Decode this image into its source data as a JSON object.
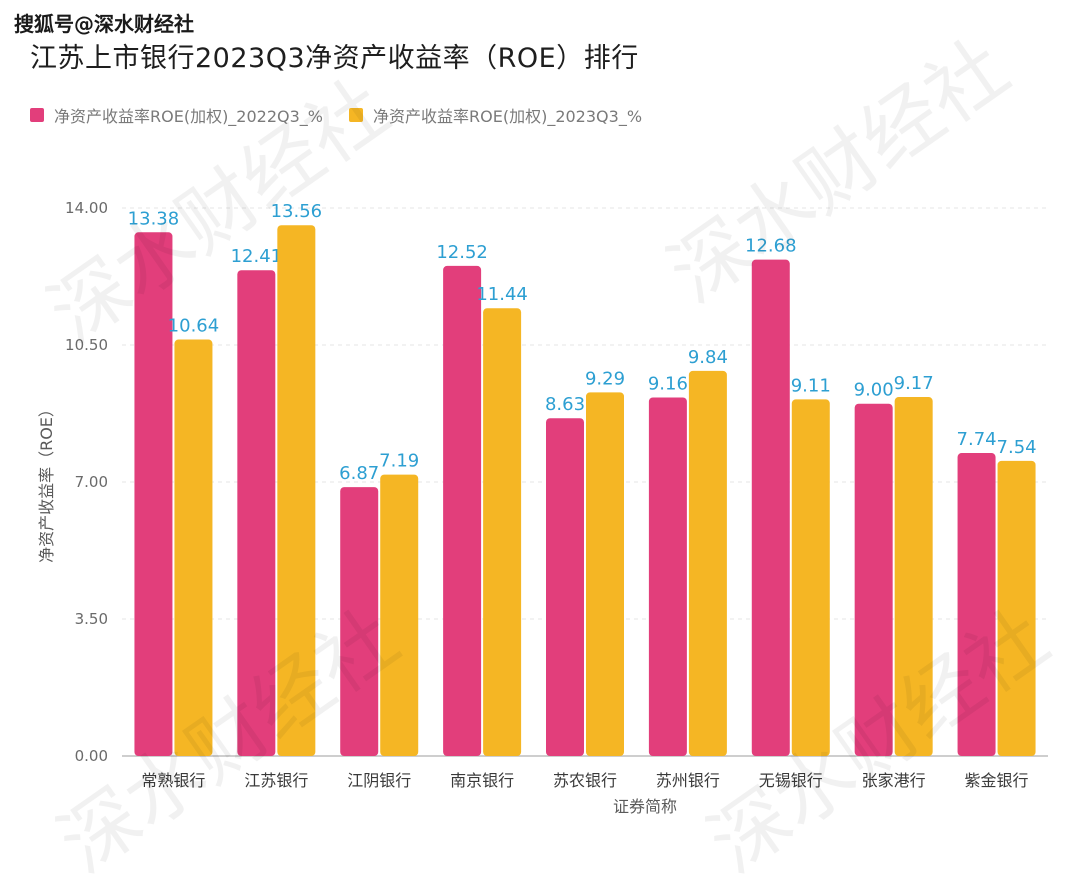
{
  "source_label": "搜狐号@深水财经社",
  "watermark_text": "深水财经社",
  "colors": {
    "series_2022": "#e23e7b",
    "series_2023": "#f5b624",
    "value_label": "#2d9fd2"
  },
  "chart_data": {
    "type": "bar",
    "title": "江苏上市银行2023Q3净资产收益率（ROE）排行",
    "xlabel": "证券简称",
    "ylabel": "净资产收益率（ROE）",
    "ylim": [
      0,
      14
    ],
    "yticks": [
      "0.00",
      "3.50",
      "7.00",
      "10.50",
      "14.00"
    ],
    "legend_position": "top-left",
    "categories": [
      "常熟银行",
      "江苏银行",
      "江阴银行",
      "南京银行",
      "苏农银行",
      "苏州银行",
      "无锡银行",
      "张家港行",
      "紫金银行"
    ],
    "series": [
      {
        "name": "净资产收益率ROE(加权)_2022Q3_%",
        "values": [
          13.38,
          12.41,
          6.87,
          12.52,
          8.63,
          9.16,
          12.68,
          9.0,
          7.74
        ],
        "labels": [
          "13.38",
          "12.41",
          "6.87",
          "12.52",
          "8.63",
          "9.16",
          "12.68",
          "9.00",
          "7.74"
        ]
      },
      {
        "name": "净资产收益率ROE(加权)_2023Q3_%",
        "values": [
          10.64,
          13.56,
          7.19,
          11.44,
          9.29,
          9.84,
          9.11,
          9.17,
          7.54
        ],
        "labels": [
          "10.64",
          "13.56",
          "7.19",
          "11.44",
          "9.29",
          "9.84",
          "9.11",
          "9.17",
          "7.54"
        ]
      }
    ]
  }
}
